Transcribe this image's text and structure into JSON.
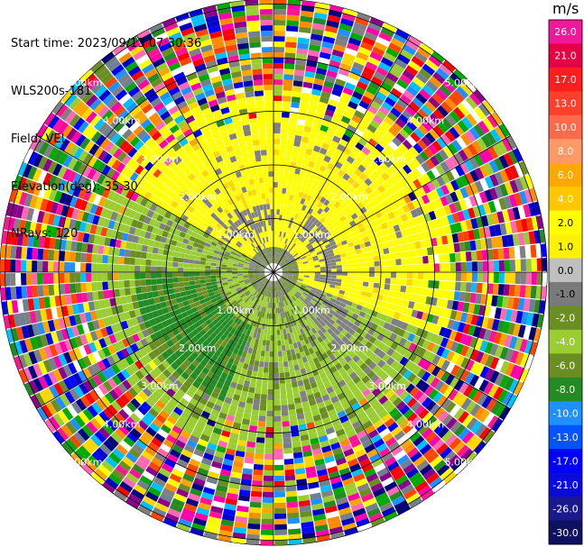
{
  "header": {
    "start_time": "Start time: 2023/09/13 07:30:36",
    "instrument": "WLS200s-181",
    "field": "Field: VEL",
    "elevation": "Elevation(deg): 35.30",
    "nrays": "NRays: 120"
  },
  "colorbar": {
    "unit": "m/s",
    "ticks": [
      "26.0",
      "21.0",
      "17.0",
      "13.0",
      "10.0",
      "8.0",
      "6.0",
      "4.0",
      "2.0",
      "1.0",
      "0.0",
      "-1.0",
      "-2.0",
      "-4.0",
      "-6.0",
      "-8.0",
      "-10.0",
      "-13.0",
      "-17.0",
      "-21.0",
      "-26.0",
      "-30.0"
    ],
    "colors": [
      "#f2189a",
      "#e60045",
      "#ff1d1d",
      "#fe3f2a",
      "#ff6a4a",
      "#ff9a66",
      "#ffa800",
      "#ffc700",
      "#ffff00",
      "#fff200",
      "#bfbfbf",
      "#7a7a7a",
      "#6b8e23",
      "#9acd32",
      "#6b8e23",
      "#228b22",
      "#1e90ff",
      "#0055ff",
      "#0000ff",
      "#0a0adc",
      "#1a1a8c",
      "#101060"
    ]
  },
  "chart_data": {
    "type": "ppi",
    "title": "",
    "field": "VEL",
    "unit": "m/s",
    "n_rays": 120,
    "elevation_deg": 35.3,
    "value_range": [
      -30.0,
      26.0
    ],
    "range_rings": [
      {
        "label": "1.00km",
        "range_km": 1.0
      },
      {
        "label": "2.00km",
        "range_km": 2.0
      },
      {
        "label": "3.00km",
        "range_km": 3.0
      },
      {
        "label": "4.00km",
        "range_km": 4.0
      },
      {
        "label": "5.00km",
        "range_km": 5.0
      }
    ],
    "max_range_km": 5.5,
    "spokes_deg": [
      0,
      30,
      60,
      90,
      120,
      150,
      180,
      210,
      240,
      270,
      300,
      330
    ],
    "pattern": {
      "receding_sector_deg": [
        300,
        110
      ],
      "receding_value_ms": 2.0,
      "approaching_value_ms": -2.0,
      "coherent_range_km": 3.2,
      "noise_beyond_km": 3.3
    }
  }
}
